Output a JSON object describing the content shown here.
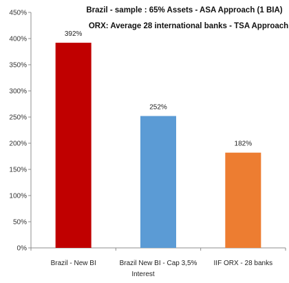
{
  "chart_data": {
    "type": "bar",
    "title_lines": [
      "Brazil -  sample : 65% Assets - ASA Approach (1 BIA)",
      "ORX: Average 28 international banks  -  TSA Approach"
    ],
    "categories": [
      "Brazil - New BI",
      "Brazil New BI - Cap 3,5%",
      "IIF ORX - 28 banks"
    ],
    "category_sublabels": [
      "",
      "Interest",
      ""
    ],
    "values": [
      392,
      252,
      182
    ],
    "data_labels": [
      "392%",
      "252%",
      "182%"
    ],
    "bar_colors": [
      "#c00000",
      "#5b9bd5",
      "#ed7d31"
    ],
    "ylim": [
      0,
      450
    ],
    "yticks": [
      0,
      50,
      100,
      150,
      200,
      250,
      300,
      350,
      400,
      450
    ],
    "ytick_labels": [
      "0%",
      "50%",
      "100%",
      "150%",
      "200%",
      "250%",
      "300%",
      "350%",
      "400%",
      "450%"
    ],
    "grid": false,
    "legend": "none"
  }
}
